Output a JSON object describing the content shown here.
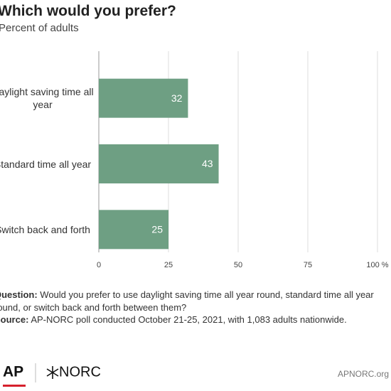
{
  "chart_data": {
    "type": "bar",
    "orientation": "horizontal",
    "title": "Which would you prefer?",
    "subtitle": "Percent of adults",
    "categories": [
      "Daylight saving time all year",
      "Standard time all year",
      "Switch back and forth"
    ],
    "values": [
      32,
      43,
      25
    ],
    "color": "#6e9f83",
    "xlim": [
      0,
      100
    ],
    "xticks": [
      0,
      25,
      50,
      75,
      {
        "value": 100,
        "label": "100 %"
      }
    ],
    "grid": true
  },
  "footer": {
    "question_label": "Question:",
    "question": "Would you prefer to use daylight saving time all year round, standard time all year round, or switch back and forth between them?",
    "source_label": "Source:",
    "source": "AP-NORC poll conducted October 21-25, 2021, with 1,083 adults nationwide."
  },
  "branding": {
    "ap": "AP",
    "norc": "NORC",
    "site": "APNORC.org"
  }
}
